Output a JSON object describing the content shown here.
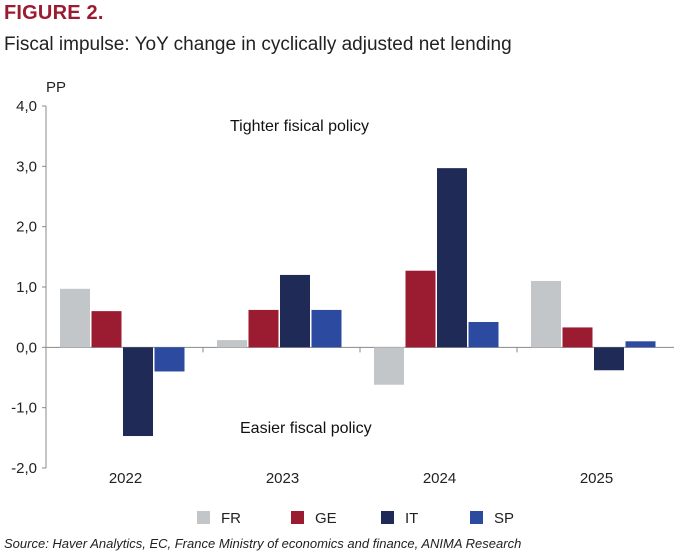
{
  "figure_label": "FIGURE 2.",
  "title": "Fiscal impulse: YoY change in cyclically adjusted net lending",
  "source": "Source: Haver Analytics, EC, France Ministry of economics and finance, ANIMA Research",
  "colors": {
    "FR": "#c3c6c9",
    "GE": "#9b1b30",
    "IT": "#1f2a56",
    "SP": "#2b4aa0",
    "label": "#9b1b30"
  },
  "chart_data": {
    "type": "bar",
    "categories": [
      "2022",
      "2023",
      "2024",
      "2025"
    ],
    "series": [
      {
        "name": "FR",
        "values": [
          0.97,
          0.12,
          -0.62,
          1.1
        ]
      },
      {
        "name": "GE",
        "values": [
          0.6,
          0.62,
          1.27,
          0.33
        ]
      },
      {
        "name": "IT",
        "values": [
          -1.47,
          1.2,
          2.97,
          -0.38
        ]
      },
      {
        "name": "SP",
        "values": [
          -0.4,
          0.62,
          0.42,
          0.1
        ]
      }
    ],
    "ylabel": "PP",
    "ylim": [
      -2.0,
      4.0
    ],
    "yticks": [
      "4,0",
      "3,0",
      "2,0",
      "1,0",
      "0,0",
      "-1,0",
      "-2,0"
    ],
    "ytick_values": [
      4,
      3,
      2,
      1,
      0,
      -1,
      -2
    ],
    "annotations": {
      "top": "Tighter fisical policy",
      "bottom": "Easier fiscal policy"
    },
    "legend_position": "bottom",
    "grid": false
  }
}
